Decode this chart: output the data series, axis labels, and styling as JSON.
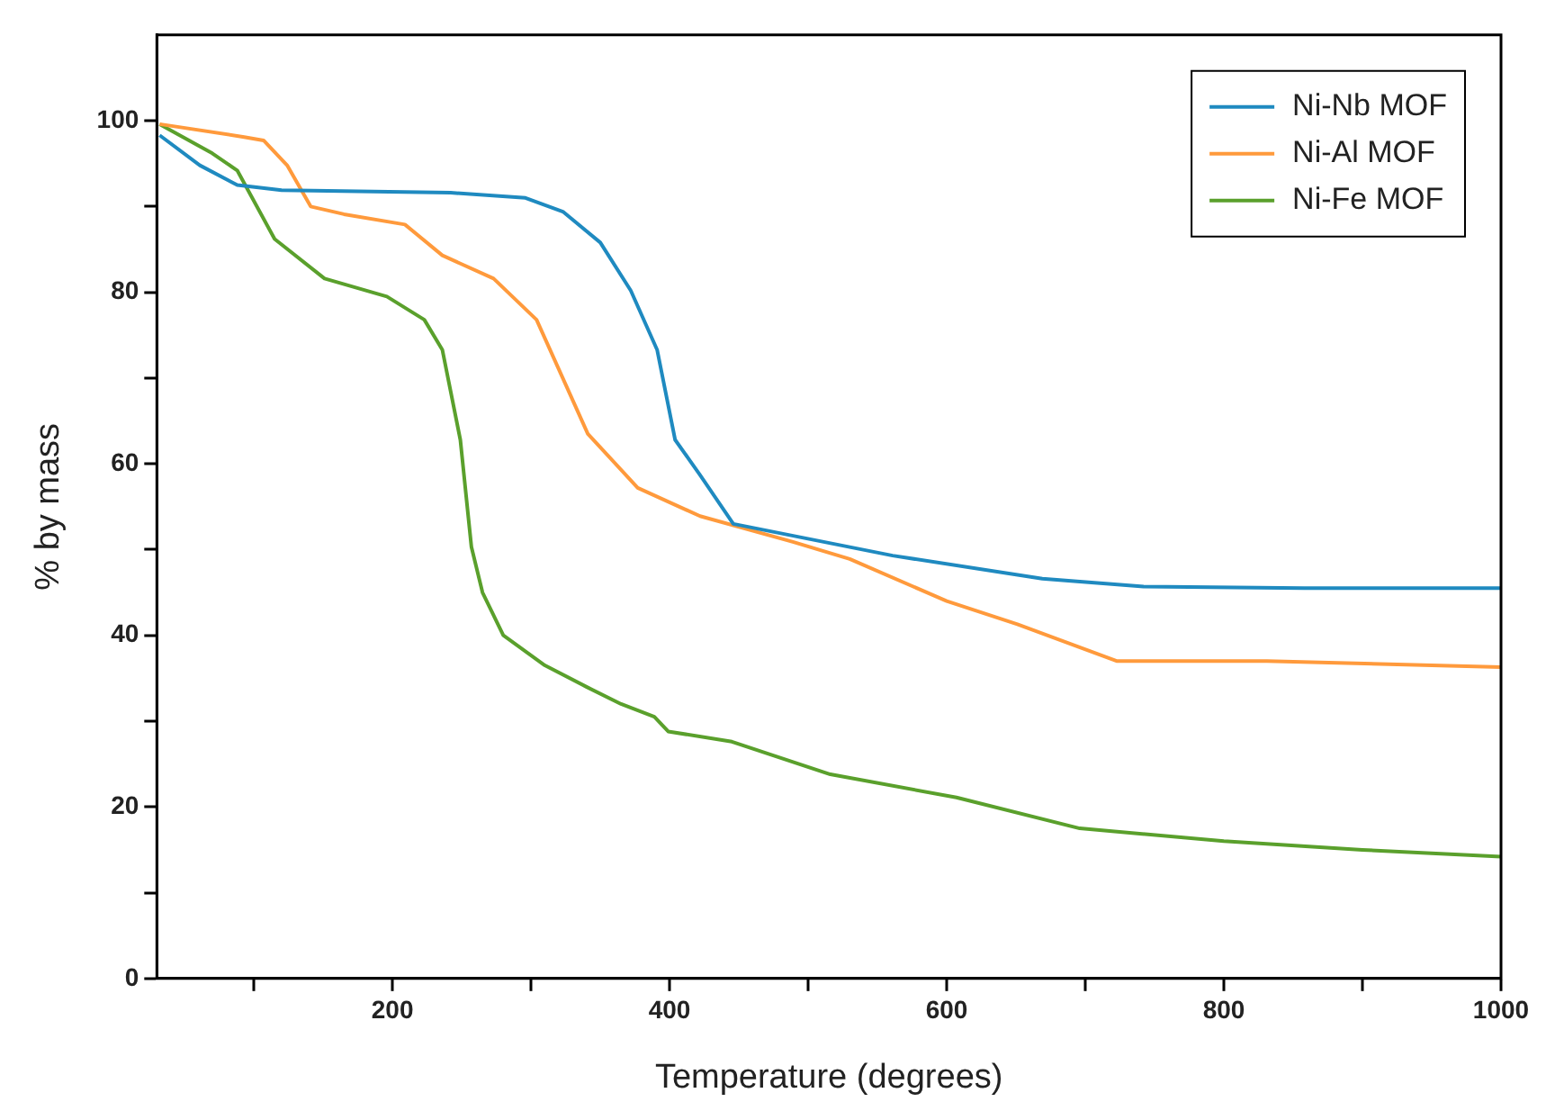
{
  "chart_data": {
    "type": "line",
    "xlabel": "Temperature (degrees)",
    "ylabel": "% by mass",
    "xlim": [
      30,
      1000
    ],
    "xticks": [
      {
        "value": 100,
        "label": null
      },
      200,
      {
        "value": 300,
        "label": null
      },
      400,
      {
        "value": 500,
        "label": null
      },
      600,
      {
        "value": 700,
        "label": null
      },
      800,
      {
        "value": 900,
        "label": null
      },
      1000
    ],
    "ylim": [
      0,
      110
    ],
    "yticks": [
      0,
      {
        "value": 10,
        "label": null
      },
      20,
      {
        "value": 30,
        "label": null
      },
      40,
      {
        "value": 50,
        "label": null
      },
      60,
      {
        "value": 70,
        "label": null
      },
      80,
      {
        "value": 90,
        "label": null
      },
      100
    ],
    "grid": false,
    "legend": "top right",
    "marker": "none",
    "line_style": "solid",
    "series": [
      {
        "name": "Ni-Nb MOF",
        "color": "#1f8ac0",
        "x": [
          32,
          61,
          88,
          120,
          242,
          296,
          323,
          350,
          372,
          391,
          404,
          422,
          446,
          561,
          669,
          742,
          858,
          1000
        ],
        "values": [
          98.3,
          94.8,
          92.5,
          91.9,
          91.6,
          91.0,
          89.4,
          85.8,
          80.2,
          73.3,
          62.8,
          58.7,
          53.0,
          49.3,
          46.6,
          45.7,
          45.5,
          45.5
        ]
      },
      {
        "name": "Ni-Al MOF",
        "color": "#ff9a3c",
        "x": [
          32,
          93,
          107,
          124,
          141,
          165,
          209,
          236,
          273,
          304,
          341,
          377,
          422,
          489,
          530,
          600,
          651,
          723,
          831,
          1000
        ],
        "values": [
          99.6,
          98.1,
          97.7,
          94.8,
          90.0,
          89.1,
          87.9,
          84.3,
          81.6,
          76.8,
          63.5,
          57.2,
          53.9,
          50.9,
          48.9,
          44.0,
          41.3,
          37.0,
          37.0,
          36.3
        ]
      },
      {
        "name": "Ni-Fe MOF",
        "color": "#5aa02c",
        "x": [
          32,
          70,
          88,
          115,
          151,
          196,
          223,
          236,
          249,
          257,
          265,
          280,
          310,
          340,
          365,
          389,
          399,
          445,
          516,
          607,
          696,
          800,
          900,
          1000
        ],
        "values": [
          99.6,
          96.2,
          94.2,
          86.2,
          81.6,
          79.5,
          76.8,
          73.3,
          62.8,
          50.3,
          45.0,
          40.0,
          36.5,
          34.0,
          32.0,
          30.5,
          28.8,
          27.6,
          23.8,
          21.1,
          17.5,
          16.0,
          15.0,
          14.2
        ]
      }
    ]
  }
}
